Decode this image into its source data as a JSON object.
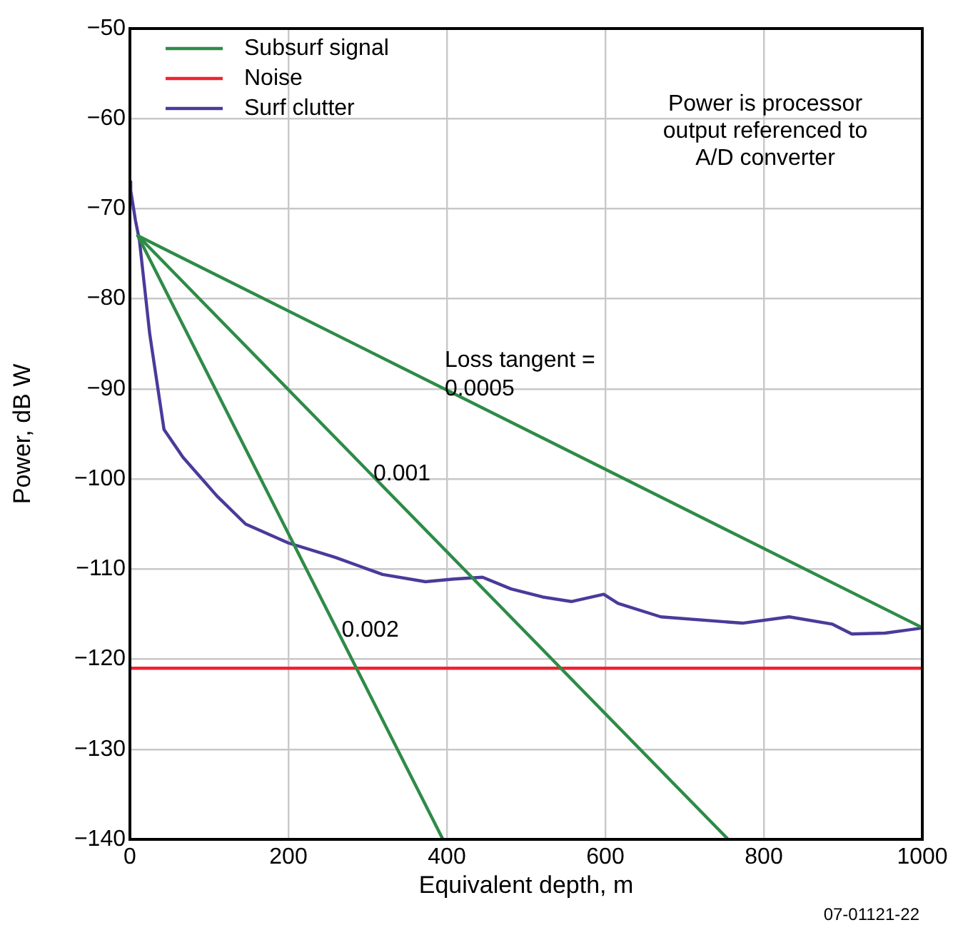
{
  "chart_data": {
    "type": "line",
    "xlabel": "Equivalent depth, m",
    "ylabel": "Power, dB W",
    "xlim": [
      0,
      1000
    ],
    "xticks": [
      0,
      200,
      400,
      600,
      800,
      1000
    ],
    "ylim": [
      -140,
      -50
    ],
    "yticks": [
      -140,
      -130,
      -120,
      -110,
      -100,
      -90,
      -80,
      -70,
      -60,
      -50
    ],
    "grid": true,
    "legend": "top left",
    "marker": "none",
    "line_style": "solid",
    "series": [
      {
        "name": "Subsurf signal",
        "color": "#2e8b47",
        "x": [
          10,
          1000
        ],
        "values": [
          -73,
          -116.5
        ]
      },
      {
        "color": "#2e8b47",
        "x": [
          10,
          755
        ],
        "values": [
          -73,
          -140
        ]
      },
      {
        "color": "#2e8b47",
        "x": [
          10,
          395
        ],
        "values": [
          -73,
          -140
        ]
      },
      {
        "name": "Noise",
        "color": "#ee2233",
        "x": [
          0,
          1000
        ],
        "values": [
          -121,
          -121
        ]
      },
      {
        "name": "Surf clutter",
        "color": "#4b3a9a",
        "x": [
          0,
          1,
          7,
          12,
          25,
          43,
          67,
          110,
          146,
          200,
          259,
          319,
          373,
          409,
          445,
          481,
          521,
          557,
          598,
          616,
          670,
          773,
          832,
          886,
          911,
          953,
          995,
          1000
        ],
        "values": [
          -67,
          -68,
          -71.3,
          -73.5,
          -83.9,
          -94.5,
          -97.6,
          -101.9,
          -105,
          -107.1,
          -108.7,
          -110.6,
          -111.4,
          -111.1,
          -110.9,
          -112.2,
          -113.1,
          -113.6,
          -112.8,
          -113.8,
          -115.3,
          -116,
          -115.3,
          -116.1,
          -117.2,
          -117.1,
          -116.6,
          -116.5
        ]
      }
    ],
    "annotations": [
      "Power is processor\noutput referenced to\nA/D converter",
      "07-01121-22",
      {
        "text": "Loss tangent =\n0.0005",
        "x": 390,
        "y": -89.7
      },
      {
        "text": "0.001",
        "x": 300,
        "y": -99.1
      },
      {
        "text": "0.002",
        "x": 260,
        "y": -116.5
      }
    ]
  }
}
